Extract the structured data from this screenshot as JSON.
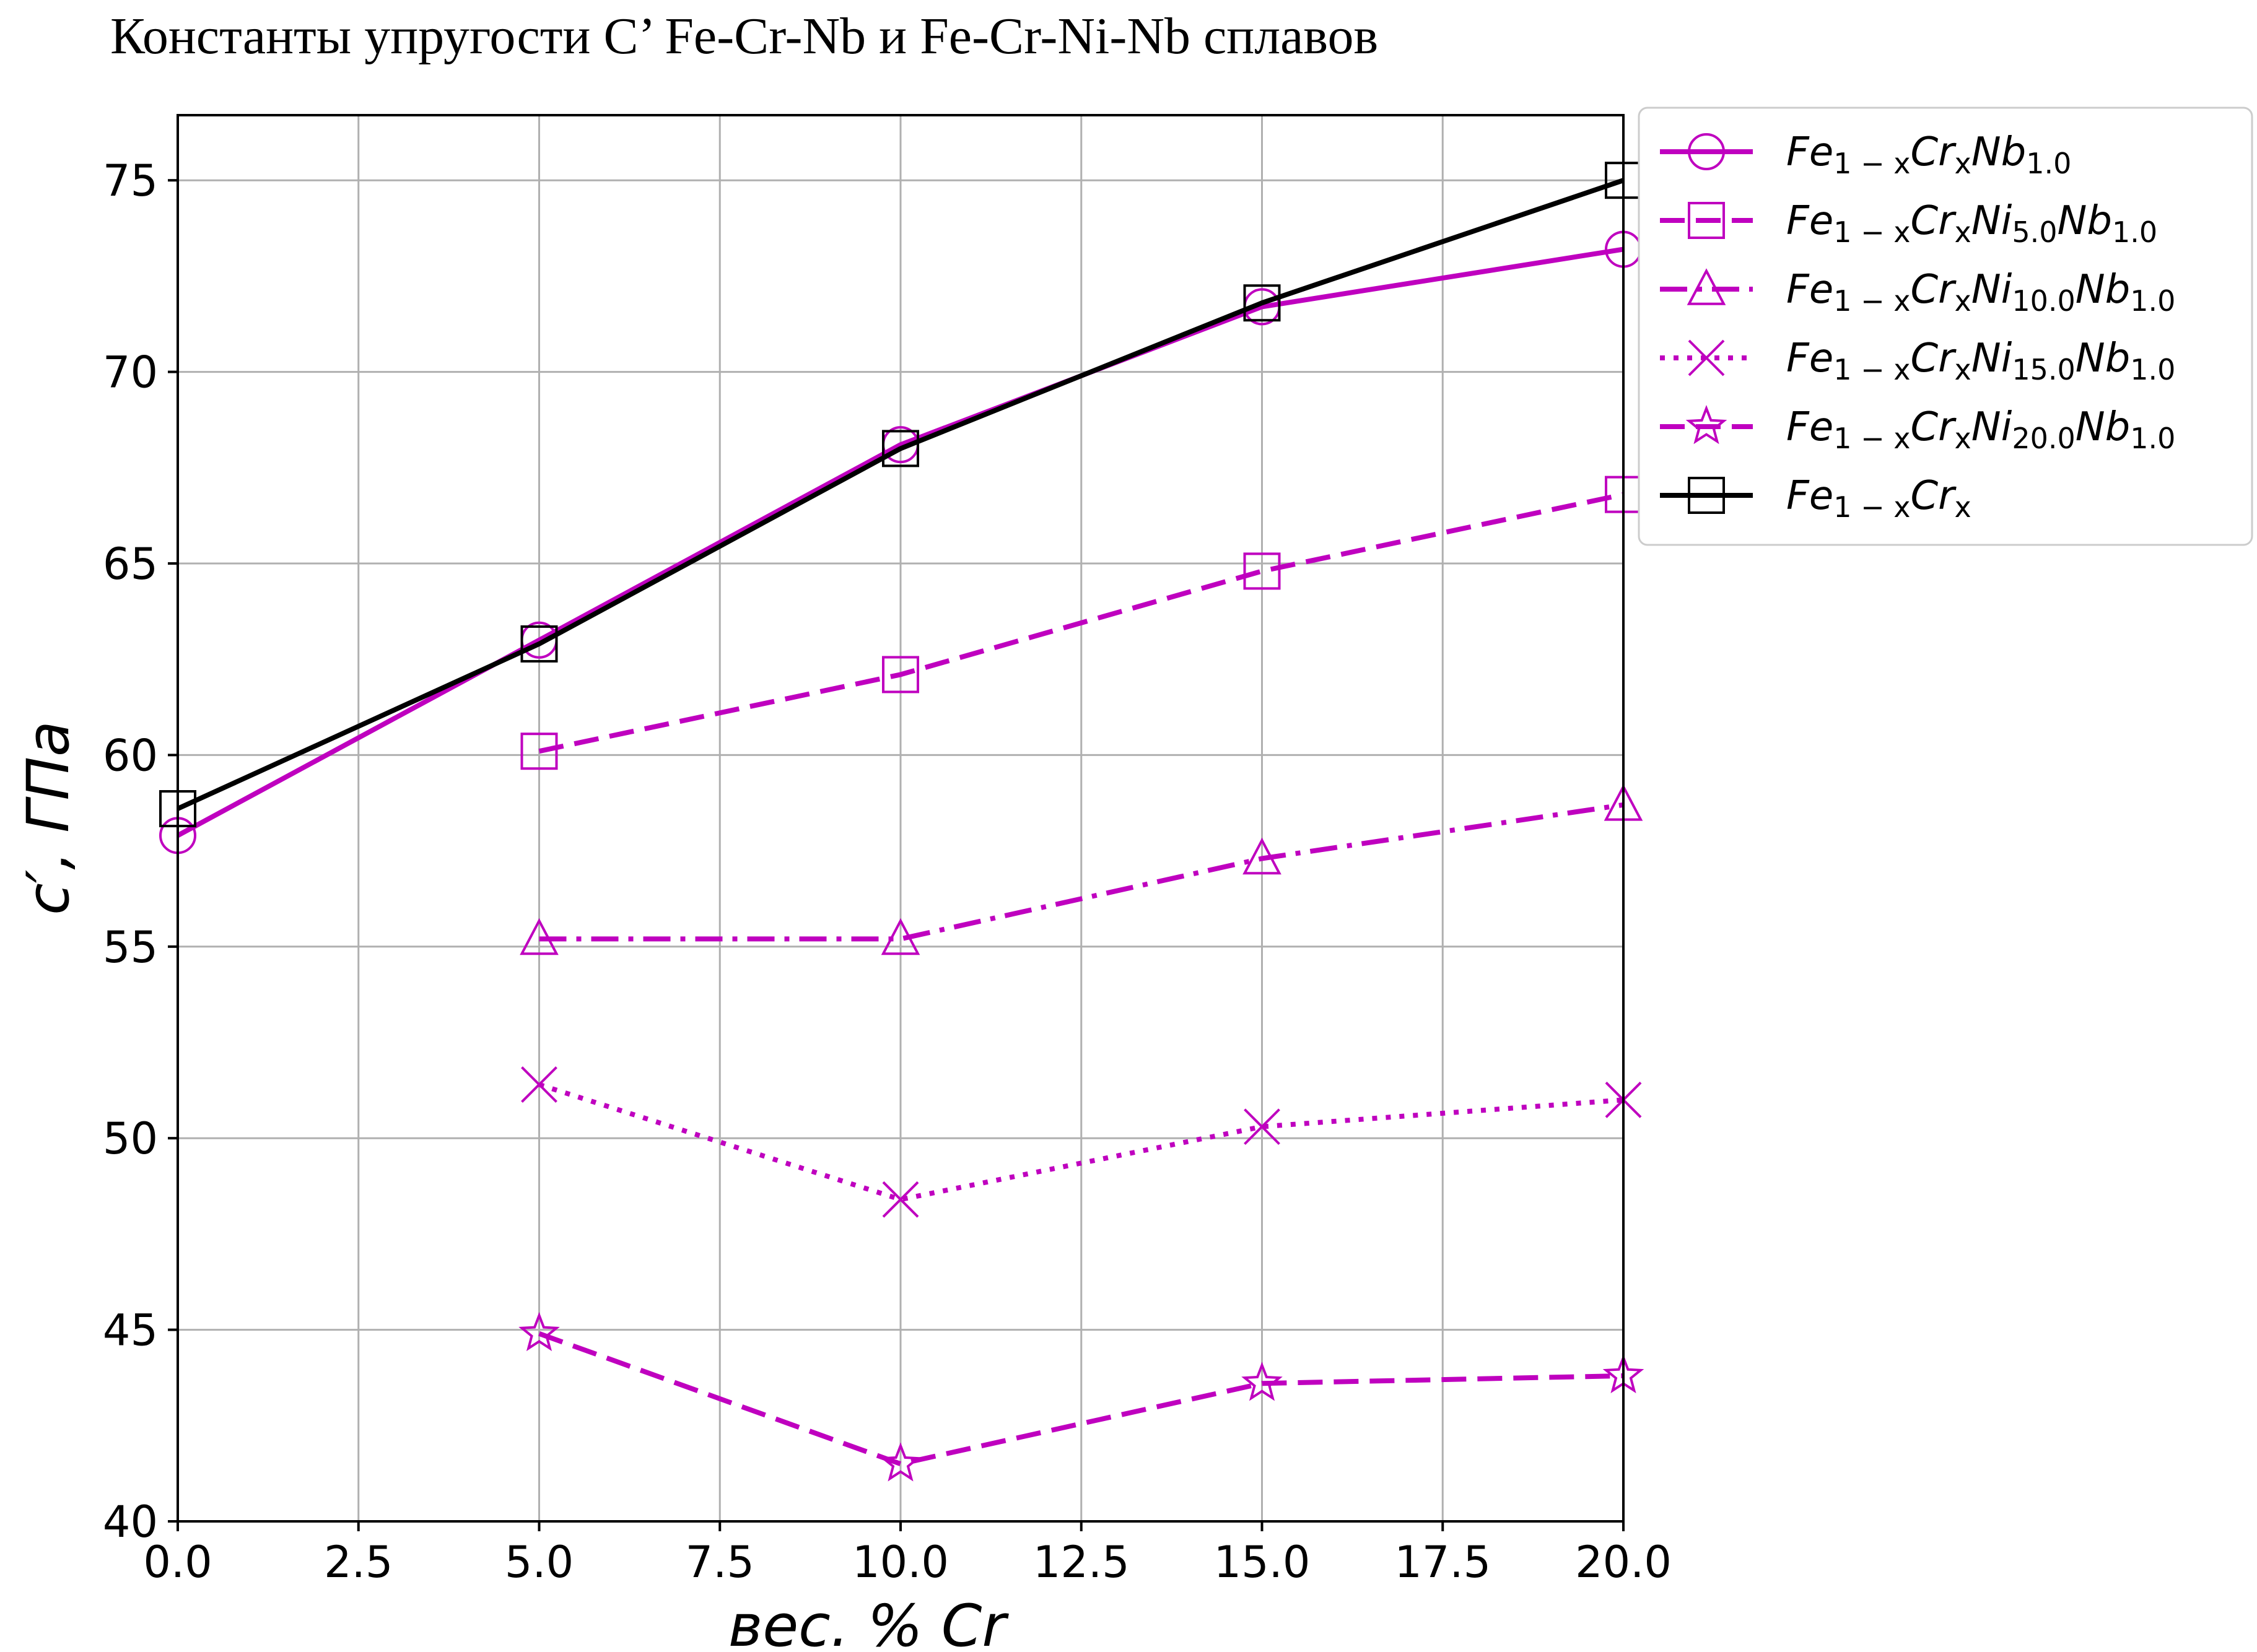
{
  "chart_data": {
    "type": "line",
    "title": "Константы упругости С’ Fe-Cr-Nb и Fe-Cr-Ni-Nb сплавов",
    "xlabel": "вес. % Cr",
    "ylabel": "c′, ГПа",
    "xlim": [
      0,
      20
    ],
    "ylim": [
      40,
      76.7
    ],
    "x_ticks": [
      "0.0",
      "2.5",
      "5.0",
      "7.5",
      "10.0",
      "12.5",
      "15.0",
      "17.5",
      "20.0"
    ],
    "y_ticks": [
      "40",
      "45",
      "50",
      "55",
      "60",
      "65",
      "70",
      "75"
    ],
    "grid": true,
    "legend_position": "outside-right-top",
    "series": [
      {
        "name": "Fe1−xCrxNb1.0",
        "color": "#bf00bf",
        "line_style": "solid",
        "marker": "circle",
        "legend_parts": [
          [
            "Fe",
            ""
          ],
          [
            "1 − x",
            "sub"
          ],
          [
            "Cr",
            ""
          ],
          [
            "x",
            "sub"
          ],
          [
            "Nb",
            ""
          ],
          [
            "1.0",
            "sub"
          ]
        ],
        "x": [
          0,
          5,
          10,
          15,
          20
        ],
        "y": [
          57.9,
          63.0,
          68.1,
          71.7,
          73.2
        ]
      },
      {
        "name": "Fe1−xCrxNi5.0Nb1.0",
        "color": "#bf00bf",
        "line_style": "dashed",
        "marker": "square",
        "legend_parts": [
          [
            "Fe",
            ""
          ],
          [
            "1 − x",
            "sub"
          ],
          [
            "Cr",
            ""
          ],
          [
            "x",
            "sub"
          ],
          [
            "Ni",
            ""
          ],
          [
            "5.0",
            "sub"
          ],
          [
            "Nb",
            ""
          ],
          [
            "1.0",
            "sub"
          ]
        ],
        "x": [
          5,
          10,
          15,
          20
        ],
        "y": [
          60.1,
          62.1,
          64.8,
          66.8
        ]
      },
      {
        "name": "Fe1−xCrxNi10.0Nb1.0",
        "color": "#bf00bf",
        "line_style": "dashdot",
        "marker": "triangle",
        "legend_parts": [
          [
            "Fe",
            ""
          ],
          [
            "1 − x",
            "sub"
          ],
          [
            "Cr",
            ""
          ],
          [
            "x",
            "sub"
          ],
          [
            "Ni",
            ""
          ],
          [
            "10.0",
            "sub"
          ],
          [
            "Nb",
            ""
          ],
          [
            "1.0",
            "sub"
          ]
        ],
        "x": [
          5,
          10,
          15,
          20
        ],
        "y": [
          55.2,
          55.2,
          57.3,
          58.7
        ]
      },
      {
        "name": "Fe1−xCrxNi15.0Nb1.0",
        "color": "#bf00bf",
        "line_style": "dotted",
        "marker": "x",
        "legend_parts": [
          [
            "Fe",
            ""
          ],
          [
            "1 − x",
            "sub"
          ],
          [
            "Cr",
            ""
          ],
          [
            "x",
            "sub"
          ],
          [
            "Ni",
            ""
          ],
          [
            "15.0",
            "sub"
          ],
          [
            "Nb",
            ""
          ],
          [
            "1.0",
            "sub"
          ]
        ],
        "x": [
          5,
          10,
          15,
          20
        ],
        "y": [
          51.4,
          48.4,
          50.3,
          51.0
        ]
      },
      {
        "name": "Fe1−xCrxNi20.0Nb1.0",
        "color": "#bf00bf",
        "line_style": "dashed",
        "marker": "star",
        "legend_parts": [
          [
            "Fe",
            ""
          ],
          [
            "1 − x",
            "sub"
          ],
          [
            "Cr",
            ""
          ],
          [
            "x",
            "sub"
          ],
          [
            "Ni",
            ""
          ],
          [
            "20.0",
            "sub"
          ],
          [
            "Nb",
            ""
          ],
          [
            "1.0",
            "sub"
          ]
        ],
        "x": [
          5,
          10,
          15,
          20
        ],
        "y": [
          44.9,
          41.5,
          43.6,
          43.8
        ]
      },
      {
        "name": "Fe1−xCrx",
        "color": "#000000",
        "line_style": "solid",
        "marker": "square",
        "legend_parts": [
          [
            "Fe",
            ""
          ],
          [
            "1 − x",
            "sub"
          ],
          [
            "Cr",
            ""
          ],
          [
            "x",
            "sub"
          ]
        ],
        "x": [
          0,
          5,
          10,
          15,
          20
        ],
        "y": [
          58.6,
          62.9,
          68.0,
          71.8,
          75.0
        ]
      }
    ]
  }
}
